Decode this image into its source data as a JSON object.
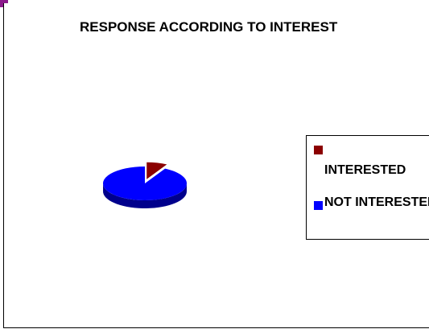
{
  "chart_data": {
    "type": "pie",
    "title": "RESPONSE ACCORDING TO INTEREST",
    "categories": [
      "INTERESTED",
      "NOT INTERESTED"
    ],
    "values": [
      8,
      92
    ],
    "exploded": [
      "INTERESTED"
    ],
    "three_d": true,
    "legend_position": "right",
    "colors": {
      "INTERESTED": "#8b0000",
      "NOT INTERESTED": "#0000ff"
    }
  },
  "legend": {
    "items": [
      {
        "label": "INTERESTED",
        "color": "#8b0000"
      },
      {
        "label": "NOT INTERESTED",
        "color": "#0000ff"
      }
    ]
  }
}
